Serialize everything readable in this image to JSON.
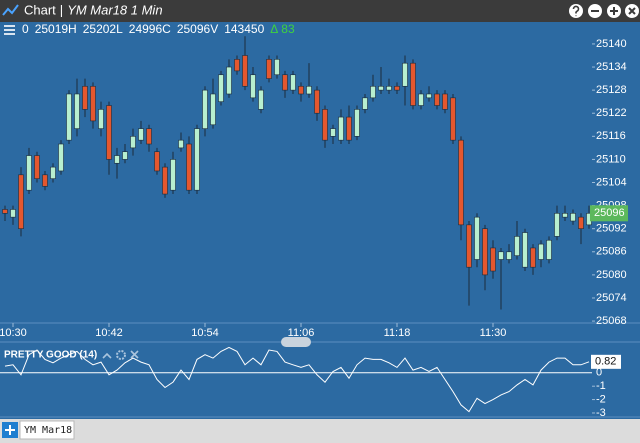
{
  "window": {
    "title": "Chart",
    "separator": "|",
    "subtitle": "YM Mar18 1 Min"
  },
  "info_bar": [
    "0",
    "25019H",
    "25202L",
    "24996C",
    "25096V",
    "143450",
    "Δ",
    "83"
  ],
  "tabs": [
    "YM Mar18"
  ],
  "chart_data": [
    {
      "type": "candlestick",
      "categories": [
        null,
        "10:30",
        null,
        null,
        null,
        null,
        null,
        null,
        null,
        null,
        null,
        null,
        null,
        "10:42",
        null,
        null,
        null,
        null,
        null,
        null,
        null,
        null,
        null,
        null,
        null,
        "10:54",
        null,
        null,
        null,
        null,
        null,
        null,
        null,
        null,
        null,
        null,
        null,
        "11:06",
        null,
        null,
        null,
        null,
        null,
        null,
        null,
        null,
        null,
        null,
        null,
        "11:18",
        null,
        null,
        null,
        null,
        null,
        null,
        null,
        null,
        null,
        null,
        null,
        "11:30",
        null,
        null,
        null,
        null,
        null,
        null,
        null,
        null,
        null,
        null,
        null,
        null
      ],
      "open": [
        25097,
        25095,
        25106,
        25102,
        25111,
        25106,
        25105,
        25107,
        25115,
        25118,
        25129,
        25129,
        25118,
        25124,
        25109,
        25110,
        25113,
        25115,
        25118,
        25112,
        25108,
        25102,
        25113,
        25114,
        25102,
        25118,
        25119,
        25125,
        25127,
        25136,
        25137,
        25126,
        25123,
        25136,
        25132,
        25132,
        25128,
        25129,
        25127,
        25128,
        25123,
        25116,
        25115,
        25121,
        25116,
        25123,
        25126,
        25128,
        25128,
        25129,
        25129,
        25135,
        25124,
        25126,
        25127,
        25127,
        25126,
        25115,
        25093,
        25084,
        25092,
        25087,
        25084,
        25084,
        25085,
        25082,
        25087,
        25084,
        25084,
        25090,
        25095,
        25094,
        25095,
        25093
      ],
      "high": [
        25098,
        25098,
        25108,
        25113,
        25112,
        25107,
        25109,
        25115,
        25128,
        25131,
        25131,
        25130,
        25125,
        25125,
        25113,
        25114,
        25118,
        25120,
        25119,
        25113,
        25109,
        25112,
        25117,
        25116,
        25119,
        25129,
        25131,
        25133,
        25136,
        25137,
        25142,
        25134,
        25129,
        25137,
        25137,
        25133,
        25133,
        25130,
        25135,
        25129,
        25124,
        25119,
        25123,
        25124,
        25124,
        25127,
        25132,
        25134,
        25131,
        25130,
        25137,
        25136,
        25128,
        25129,
        25128,
        25128,
        25127,
        25116,
        25094,
        25096,
        25093,
        25089,
        25087,
        25088,
        25094,
        25092,
        25088,
        25089,
        25090,
        25098,
        25098,
        25097,
        25096,
        25098
      ],
      "low": [
        25094,
        25093,
        25090,
        25101,
        25104,
        25102,
        25104,
        25106,
        25114,
        25116,
        25121,
        25118,
        25116,
        25106,
        25105,
        25109,
        25111,
        25114,
        25112,
        25106,
        25100,
        25101,
        25112,
        25101,
        25101,
        25116,
        25118,
        25124,
        25126,
        25132,
        25128,
        25125,
        25122,
        25130,
        25131,
        25126,
        25127,
        25125,
        25126,
        25120,
        25113,
        25114,
        25114,
        25114,
        25115,
        25122,
        25125,
        25127,
        25127,
        25127,
        25124,
        25123,
        25123,
        25125,
        25123,
        25122,
        25114,
        25089,
        25072,
        25082,
        25076,
        25079,
        25071,
        25083,
        25084,
        25081,
        25080,
        25082,
        25083,
        25089,
        25094,
        25093,
        25088,
        25092
      ],
      "close": [
        25096,
        25097,
        25092,
        25111,
        25105,
        25103,
        25108,
        25114,
        25127,
        25127,
        25123,
        25120,
        25123,
        25110,
        25111,
        25112,
        25116,
        25118,
        25114,
        25107,
        25101,
        25110,
        25115,
        25102,
        25118,
        25128,
        25127,
        25132,
        25134,
        25133,
        25129,
        25132,
        25128,
        25131,
        25136,
        25128,
        25132,
        25127,
        25129,
        25122,
        25115,
        25118,
        25121,
        25115,
        25123,
        25126,
        25129,
        25129,
        25129,
        25128,
        25135,
        25124,
        25127,
        25127,
        25124,
        25123,
        25115,
        25093,
        25082,
        25095,
        25080,
        25081,
        25086,
        25086,
        25090,
        25091,
        25082,
        25088,
        25089,
        25096,
        25096,
        25096,
        25092,
        25096
      ],
      "up_color": "#b8efcf",
      "down_color": "#e4572e",
      "wick_color": "#1c2c3c",
      "ylim": [
        25067.5,
        25145.7
      ],
      "yticks": [
        25068,
        25074,
        25080,
        25086,
        25092,
        25098,
        25104,
        25110,
        25116,
        25122,
        25128,
        25134,
        25140
      ],
      "grid": false
    },
    {
      "type": "line",
      "title": "PRETTY GOOD (14)",
      "values": [
        0.5,
        0.6,
        -0.15,
        1.35,
        1.7,
        1.0,
        0.75,
        1.1,
        1.35,
        1.6,
        1.0,
        0.6,
        0.8,
        -0.15,
        0.2,
        0.75,
        1.1,
        0.8,
        0.6,
        -0.5,
        -1.1,
        -0.7,
        0.2,
        -0.5,
        1.0,
        1.35,
        1.1,
        1.6,
        1.9,
        1.6,
        0.6,
        1.1,
        0.6,
        1.7,
        1.6,
        0.8,
        0.6,
        0.4,
        0.6,
        -0.15,
        -0.7,
        0.1,
        0.4,
        -0.4,
        0.6,
        1.1,
        1.0,
        1.0,
        0.75,
        0.4,
        1.1,
        0.2,
        0.4,
        0.1,
        0.4,
        -0.5,
        -1.4,
        -2.4,
        -2.9,
        -1.9,
        -2.3,
        -2.0,
        -1.65,
        -1.4,
        -0.9,
        -0.5,
        -0.9,
        0.2,
        0.8,
        1.1,
        1.1,
        0.6,
        0.6,
        0.82
      ],
      "color": "#ffffff",
      "ylim": [
        -3.3,
        2.3
      ],
      "yticks": [
        0,
        -1,
        -2,
        -3
      ]
    }
  ]
}
